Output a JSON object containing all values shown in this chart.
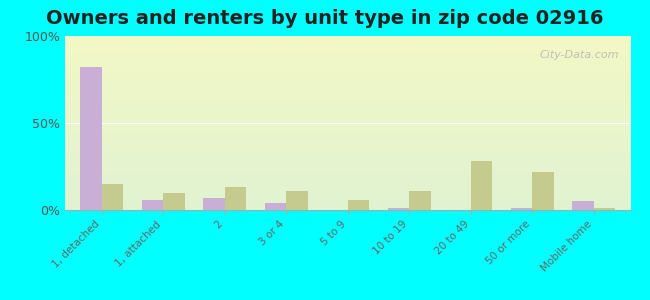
{
  "title": "Owners and renters by unit type in zip code 02916",
  "categories": [
    "1, detached",
    "1, attached",
    "2",
    "3 or 4",
    "5 to 9",
    "10 to 19",
    "20 to 49",
    "50 or more",
    "Mobile home"
  ],
  "owner_values": [
    82,
    6,
    7,
    4,
    0,
    1,
    0,
    1,
    5
  ],
  "renter_values": [
    15,
    10,
    13,
    11,
    6,
    11,
    28,
    22,
    1
  ],
  "owner_color": "#c9aed6",
  "renter_color": "#c5ca8e",
  "ylim": [
    0,
    100
  ],
  "yticks": [
    0,
    50,
    100
  ],
  "ytick_labels": [
    "0%",
    "50%",
    "100%"
  ],
  "background_top": "#e8f5e0",
  "background_bottom": "#f5ffe8",
  "figure_bg": "#00ffff",
  "watermark": "City-Data.com",
  "title_fontsize": 14,
  "bar_width": 0.35
}
